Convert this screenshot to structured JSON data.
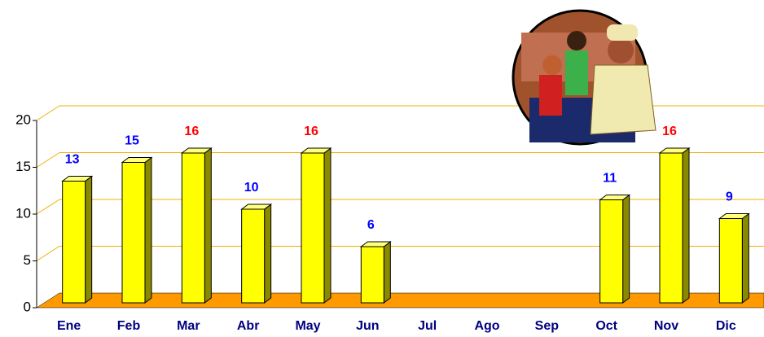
{
  "chart_data": {
    "type": "bar3d",
    "categories": [
      "Ene",
      "Feb",
      "Mar",
      "Abr",
      "May",
      "Jun",
      "Jul",
      "Ago",
      "Sep",
      "Oct",
      "Nov",
      "Dic"
    ],
    "values": [
      13,
      15,
      16,
      10,
      16,
      6,
      null,
      null,
      null,
      11,
      16,
      9
    ],
    "color": "#ffff00",
    "label_colors": [
      "#0000ff",
      "#0000ff",
      "#ff0000",
      "#0000ff",
      "#ff0000",
      "#0000ff",
      null,
      null,
      null,
      "#0000ff",
      "#ff0000",
      "#0000ff"
    ],
    "ylim": [
      0,
      20
    ],
    "yticks": [
      0,
      5,
      10,
      15,
      20
    ],
    "grid": true,
    "grid_color": "#f0b000",
    "floor_color": "#ff9900"
  }
}
